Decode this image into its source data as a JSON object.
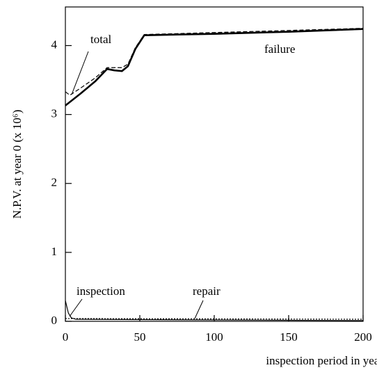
{
  "chart_data": {
    "type": "line",
    "xlabel": "inspection period in years",
    "ylabel": "N.P.V. at year 0 (x 10⁶)",
    "xlim": [
      0,
      200
    ],
    "xticks": [
      0,
      50,
      100,
      150,
      200
    ],
    "ylim": [
      0,
      4.56
    ],
    "yticks": [
      0,
      1,
      2,
      3,
      4
    ],
    "grid": false,
    "series": [
      {
        "name": "failure",
        "color": "#000",
        "line_style": "solid",
        "line_width": 2.6,
        "x": [
          0,
          10,
          20,
          28,
          33,
          38,
          42,
          47,
          53,
          100,
          150,
          200
        ],
        "values": [
          3.13,
          3.3,
          3.48,
          3.66,
          3.64,
          3.63,
          3.7,
          3.95,
          4.15,
          4.17,
          4.2,
          4.24
        ]
      },
      {
        "name": "total",
        "color": "#000",
        "line_style": "dashed",
        "line_width": 1.2,
        "x": [
          0,
          3,
          10,
          20,
          28,
          38,
          42,
          47,
          53,
          200
        ],
        "values": [
          3.33,
          3.28,
          3.38,
          3.53,
          3.68,
          3.68,
          3.73,
          3.97,
          4.16,
          4.25
        ]
      },
      {
        "name": "inspection",
        "color": "#000",
        "line_style": "solid",
        "line_width": 1.2,
        "x": [
          0,
          2,
          4,
          7,
          200
        ],
        "values": [
          0.3,
          0.12,
          0.05,
          0.03,
          0.01
        ]
      },
      {
        "name": "repair",
        "color": "#000",
        "line_style": "dotted",
        "line_width": 1.2,
        "x": [
          0,
          200
        ],
        "values": [
          0.04,
          0.03
        ]
      }
    ]
  }
}
